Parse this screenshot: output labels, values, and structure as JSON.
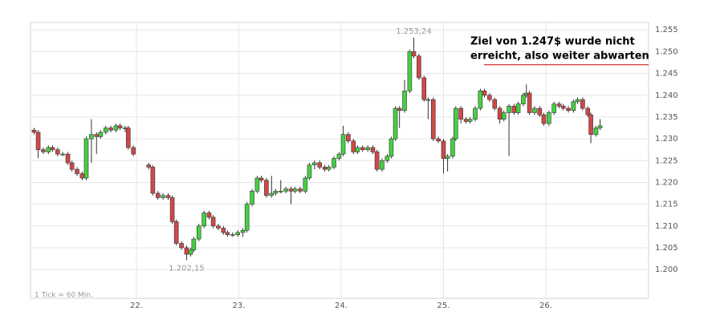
{
  "chart_data": {
    "type": "candlestick",
    "footnote": "1 Tick = 60 Min.",
    "xlim": [
      20.965,
      27.004
    ],
    "xticks": [
      {
        "value": 22,
        "label": "22."
      },
      {
        "value": 23,
        "label": "23."
      },
      {
        "value": 24,
        "label": "24."
      },
      {
        "value": 25,
        "label": "25."
      },
      {
        "value": 26,
        "label": "26."
      }
    ],
    "ylim": [
      1.1934,
      1.2567
    ],
    "yticks": [
      {
        "value": 1.2,
        "label": "1.200"
      },
      {
        "value": 1.205,
        "label": "1.205"
      },
      {
        "value": 1.21,
        "label": "1.210"
      },
      {
        "value": 1.215,
        "label": "1.215"
      },
      {
        "value": 1.22,
        "label": "1.220"
      },
      {
        "value": 1.225,
        "label": "1.225"
      },
      {
        "value": 1.23,
        "label": "1.230"
      },
      {
        "value": 1.235,
        "label": "1.235"
      },
      {
        "value": 1.24,
        "label": "1.240"
      },
      {
        "value": 1.245,
        "label": "1.245"
      },
      {
        "value": 1.25,
        "label": "1.250"
      },
      {
        "value": 1.255,
        "label": "1.255"
      }
    ],
    "grid": true,
    "up_color": "#44d044",
    "down_color": "#d04848",
    "x": [
      21.0,
      21.04,
      21.09,
      21.14,
      21.18,
      21.23,
      21.28,
      21.33,
      21.37,
      21.42,
      21.47,
      21.51,
      21.56,
      21.61,
      21.65,
      21.7,
      21.75,
      21.8,
      21.84,
      21.89,
      21.92,
      21.97,
      22.12,
      22.16,
      22.21,
      22.26,
      22.31,
      22.35,
      22.39,
      22.44,
      22.49,
      22.53,
      22.56,
      22.61,
      22.66,
      22.71,
      22.75,
      22.8,
      22.85,
      22.89,
      22.94,
      22.99,
      23.04,
      23.08,
      23.13,
      23.18,
      23.22,
      23.27,
      23.32,
      23.36,
      23.41,
      23.46,
      23.51,
      23.55,
      23.6,
      23.65,
      23.69,
      23.74,
      23.79,
      23.84,
      23.88,
      23.93,
      23.98,
      24.02,
      24.07,
      24.12,
      24.16,
      24.21,
      24.26,
      24.31,
      24.35,
      24.4,
      24.45,
      24.49,
      24.53,
      24.57,
      24.62,
      24.67,
      24.71,
      24.76,
      24.81,
      24.85,
      24.9,
      24.95,
      25.0,
      25.04,
      25.09,
      25.12,
      25.17,
      25.22,
      25.26,
      25.31,
      25.36,
      25.4,
      25.45,
      25.5,
      25.55,
      25.59,
      25.64,
      25.69,
      25.73,
      25.78,
      25.81,
      25.84,
      25.89,
      25.94,
      25.98,
      26.03,
      26.08,
      26.13,
      26.17,
      26.22,
      26.27,
      26.31,
      26.36,
      26.41,
      26.44,
      26.49,
      26.53
    ],
    "open": [
      1.232,
      1.2315,
      1.2275,
      1.227,
      1.228,
      1.2275,
      1.2265,
      1.2265,
      1.2245,
      1.223,
      1.222,
      1.221,
      1.23,
      1.231,
      1.2305,
      1.2315,
      1.2325,
      1.232,
      1.233,
      1.2325,
      1.2325,
      1.228,
      1.224,
      1.2235,
      1.2175,
      1.2165,
      1.217,
      1.2165,
      1.211,
      1.206,
      1.205,
      1.2035,
      1.2045,
      1.207,
      1.21,
      1.213,
      1.212,
      1.21,
      1.2095,
      1.2085,
      1.208,
      1.208,
      1.2085,
      1.209,
      1.215,
      1.218,
      1.221,
      1.2205,
      1.217,
      1.2175,
      1.218,
      1.218,
      1.2185,
      1.218,
      1.2185,
      1.218,
      1.221,
      1.224,
      1.2245,
      1.2235,
      1.223,
      1.2235,
      1.2255,
      1.2265,
      1.231,
      1.2295,
      1.227,
      1.228,
      1.2275,
      1.228,
      1.227,
      1.223,
      1.225,
      1.226,
      1.23,
      1.237,
      1.2365,
      1.241,
      1.25,
      1.249,
      1.244,
      1.239,
      1.239,
      1.23,
      1.2295,
      1.2255,
      1.226,
      1.23,
      1.237,
      1.2345,
      1.234,
      1.2345,
      1.237,
      1.241,
      1.24,
      1.239,
      1.237,
      1.2345,
      1.236,
      1.2375,
      1.236,
      1.238,
      1.24,
      1.2405,
      1.236,
      1.237,
      1.2355,
      1.2335,
      1.236,
      1.238,
      1.2375,
      1.237,
      1.2365,
      1.2385,
      1.239,
      1.237,
      1.2355,
      1.231,
      1.2325
    ],
    "high": [
      1.2325,
      1.232,
      1.228,
      1.2285,
      1.2285,
      1.228,
      1.227,
      1.227,
      1.225,
      1.2235,
      1.2225,
      1.2305,
      1.2345,
      1.2315,
      1.232,
      1.233,
      1.233,
      1.2335,
      1.2335,
      1.233,
      1.233,
      1.2285,
      1.2245,
      1.224,
      1.218,
      1.2175,
      1.2175,
      1.217,
      1.2115,
      1.2065,
      1.2055,
      1.205,
      1.2075,
      1.2105,
      1.2135,
      1.2135,
      1.2125,
      1.2105,
      1.21,
      1.209,
      1.2085,
      1.209,
      1.2095,
      1.2155,
      1.2185,
      1.2215,
      1.2215,
      1.221,
      1.2215,
      1.2185,
      1.2205,
      1.219,
      1.219,
      1.219,
      1.219,
      1.2215,
      1.2245,
      1.225,
      1.225,
      1.224,
      1.224,
      1.226,
      1.227,
      1.233,
      1.2315,
      1.23,
      1.2285,
      1.2285,
      1.2285,
      1.2285,
      1.2275,
      1.2255,
      1.2265,
      1.2305,
      1.2375,
      1.2375,
      1.2435,
      1.2505,
      1.25324,
      1.2495,
      1.2445,
      1.2395,
      1.2395,
      1.2305,
      1.23,
      1.2265,
      1.2305,
      1.2375,
      1.2375,
      1.235,
      1.235,
      1.2375,
      1.2415,
      1.2415,
      1.2405,
      1.2395,
      1.2375,
      1.2365,
      1.238,
      1.238,
      1.2385,
      1.2405,
      1.2425,
      1.241,
      1.2375,
      1.2375,
      1.236,
      1.2365,
      1.2385,
      1.2385,
      1.238,
      1.2375,
      1.239,
      1.2395,
      1.2395,
      1.2375,
      1.236,
      1.233,
      1.2345
    ],
    "low": [
      1.231,
      1.2255,
      1.2265,
      1.2265,
      1.227,
      1.226,
      1.226,
      1.224,
      1.2225,
      1.2215,
      1.2205,
      1.2205,
      1.2245,
      1.2265,
      1.23,
      1.231,
      1.2315,
      1.2315,
      1.232,
      1.2315,
      1.2275,
      1.226,
      1.223,
      1.217,
      1.216,
      1.216,
      1.216,
      1.2105,
      1.2055,
      1.2045,
      1.20215,
      1.203,
      1.204,
      1.2065,
      1.2095,
      1.2115,
      1.2095,
      1.209,
      1.208,
      1.2075,
      1.2075,
      1.2075,
      1.2075,
      1.2085,
      1.2145,
      1.2175,
      1.22,
      1.2165,
      1.2165,
      1.217,
      1.2175,
      1.2175,
      1.215,
      1.2175,
      1.2175,
      1.2175,
      1.2205,
      1.223,
      1.223,
      1.2225,
      1.2225,
      1.223,
      1.225,
      1.226,
      1.229,
      1.2265,
      1.2265,
      1.227,
      1.227,
      1.2265,
      1.2225,
      1.2225,
      1.2245,
      1.2255,
      1.2295,
      1.2325,
      1.236,
      1.2405,
      1.2485,
      1.2435,
      1.2385,
      1.2345,
      1.2295,
      1.229,
      1.222,
      1.2225,
      1.2255,
      1.2295,
      1.2335,
      1.2335,
      1.2335,
      1.234,
      1.2365,
      1.2395,
      1.2385,
      1.2365,
      1.2335,
      1.234,
      1.226,
      1.2355,
      1.2355,
      1.2375,
      1.2395,
      1.2355,
      1.2355,
      1.235,
      1.233,
      1.233,
      1.2355,
      1.237,
      1.2365,
      1.236,
      1.236,
      1.238,
      1.2365,
      1.235,
      1.229,
      1.2305,
      1.232
    ],
    "close": [
      1.2315,
      1.2275,
      1.227,
      1.228,
      1.2275,
      1.2265,
      1.2265,
      1.2245,
      1.223,
      1.222,
      1.221,
      1.23,
      1.231,
      1.2305,
      1.2315,
      1.2325,
      1.232,
      1.233,
      1.2325,
      1.2325,
      1.228,
      1.2265,
      1.2235,
      1.2175,
      1.2165,
      1.217,
      1.2165,
      1.211,
      1.206,
      1.205,
      1.2035,
      1.2045,
      1.207,
      1.21,
      1.213,
      1.212,
      1.21,
      1.2095,
      1.2085,
      1.208,
      1.208,
      1.2085,
      1.209,
      1.215,
      1.218,
      1.221,
      1.2205,
      1.217,
      1.2175,
      1.218,
      1.218,
      1.2185,
      1.218,
      1.2185,
      1.218,
      1.221,
      1.224,
      1.2245,
      1.2235,
      1.223,
      1.2235,
      1.2255,
      1.2265,
      1.231,
      1.2295,
      1.227,
      1.228,
      1.2275,
      1.228,
      1.227,
      1.223,
      1.225,
      1.226,
      1.23,
      1.237,
      1.2365,
      1.241,
      1.25,
      1.249,
      1.244,
      1.239,
      1.239,
      1.23,
      1.2295,
      1.2255,
      1.226,
      1.23,
      1.237,
      1.2345,
      1.234,
      1.2345,
      1.237,
      1.241,
      1.24,
      1.239,
      1.237,
      1.2345,
      1.236,
      1.2375,
      1.236,
      1.238,
      1.24,
      1.2405,
      1.236,
      1.237,
      1.2355,
      1.2335,
      1.236,
      1.238,
      1.2375,
      1.237,
      1.2365,
      1.2385,
      1.239,
      1.237,
      1.2355,
      1.231,
      1.2325,
      1.233
    ],
    "annotations": [
      {
        "label": "1.253,24",
        "x": 24.71,
        "y": 1.25324
      },
      {
        "label": "1.202,15",
        "x": 22.49,
        "y": 1.20215
      }
    ],
    "target": {
      "value": 1.247,
      "color": "#cc0000",
      "text": [
        "Ziel von 1.247$ wurde nicht",
        "erreicht, also weiter abwarten"
      ]
    }
  }
}
